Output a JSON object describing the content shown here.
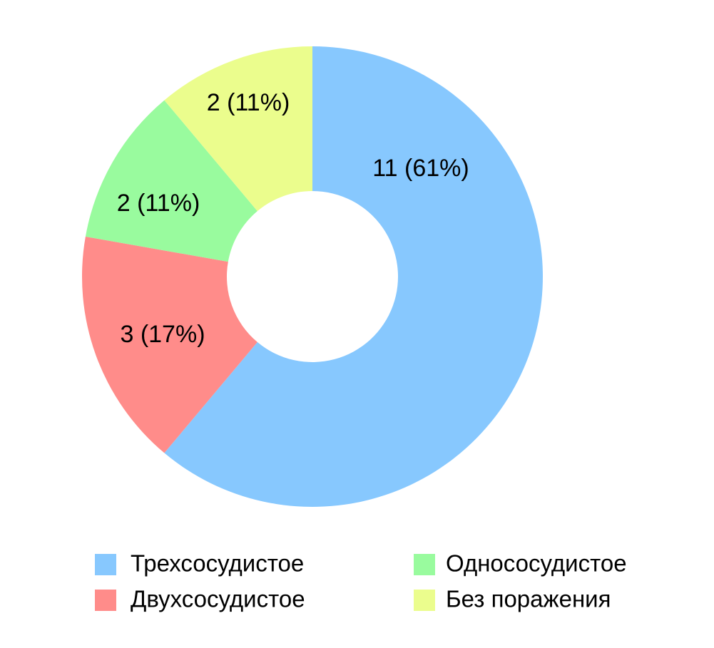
{
  "chart_data": {
    "type": "donut",
    "categories": [
      "Трехсосудистое",
      "Двухсосудистое",
      "Однососудистое",
      "Без поражения"
    ],
    "values": [
      11,
      3,
      2,
      2
    ],
    "value_labels": [
      "11 (61%)",
      "3 (17%)",
      "2 (11%)",
      "2 (11%)"
    ],
    "colors": [
      "#87c8fe",
      "#ff8c8a",
      "#99fb9e",
      "#ebfd8d"
    ],
    "direction": "clockwise",
    "start": "top"
  }
}
